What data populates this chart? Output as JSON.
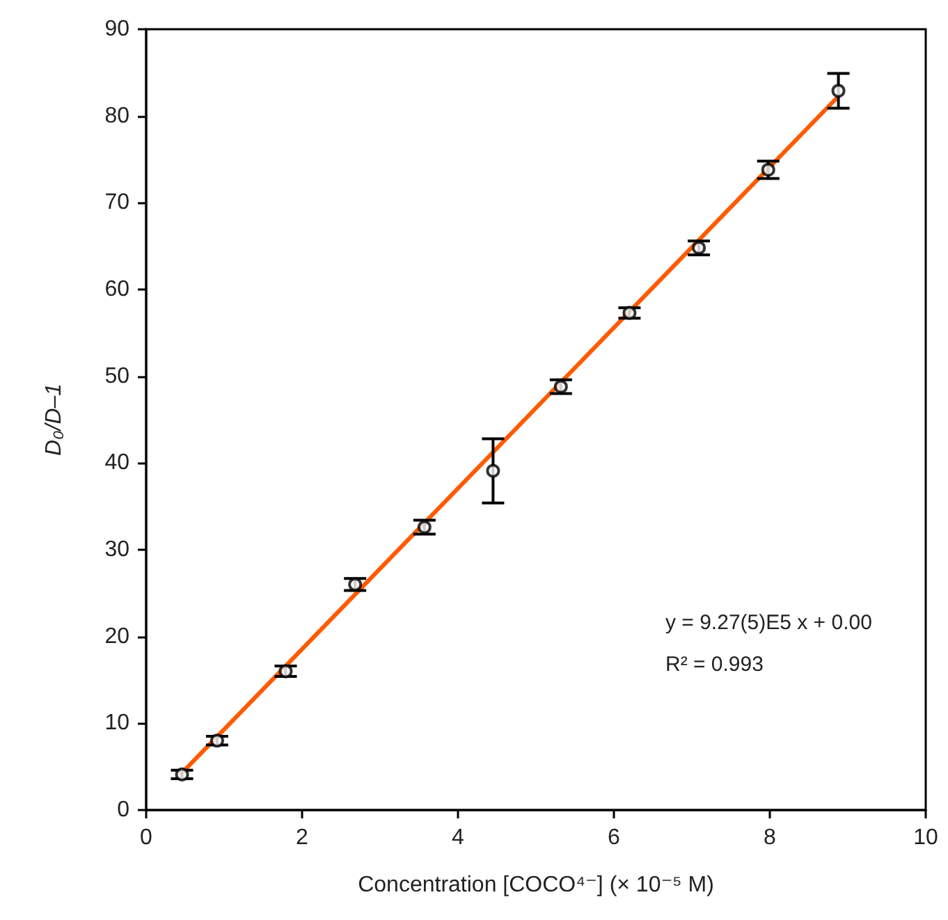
{
  "chart_data": {
    "type": "scatter",
    "xlabel": "Concentration [COCO⁴⁻] (× 10⁻⁵ M)",
    "ylabel": "D₀/D–1",
    "xlim": [
      0,
      10
    ],
    "xticks": [
      0,
      2,
      4,
      6,
      8,
      10
    ],
    "ylim": [
      0,
      90
    ],
    "yticks": [
      0,
      10,
      20,
      30,
      40,
      50,
      60,
      70,
      80,
      90
    ],
    "marker": "circle",
    "annotations": [
      "y = 9.27(5)E5 x + 0.00",
      "R² = 0.993"
    ],
    "series": [
      {
        "type": "scatter",
        "color": "#000000",
        "x": [
          0.46,
          0.91,
          1.79,
          2.68,
          3.57,
          4.45,
          5.32,
          6.2,
          7.09,
          7.98,
          8.88
        ],
        "values": [
          4.1,
          8.0,
          16.0,
          26.0,
          32.6,
          39.1,
          48.8,
          57.3,
          64.8,
          73.8,
          82.9
        ],
        "errors": [
          0.5,
          0.5,
          0.6,
          0.7,
          0.8,
          3.7,
          0.8,
          0.6,
          0.8,
          1.0,
          2.0
        ]
      },
      {
        "type": "line",
        "color": "#ff5a00",
        "x": [
          0.45,
          8.85
        ],
        "values": [
          4.2,
          82.0
        ],
        "marker": "none",
        "line_style": "solid"
      }
    ]
  }
}
